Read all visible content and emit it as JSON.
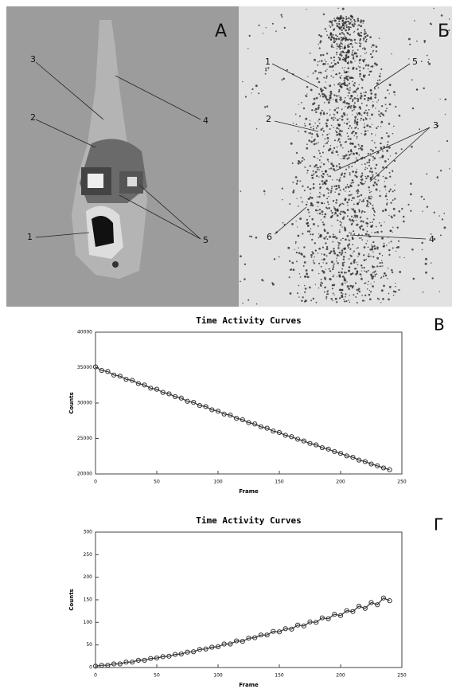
{
  "panels": [
    {
      "label": "А",
      "callouts": [
        "3",
        "2",
        "1",
        "4",
        "5"
      ]
    },
    {
      "label": "Б",
      "callouts": [
        "1",
        "2",
        "6",
        "5",
        "3",
        "4"
      ]
    }
  ],
  "chart_data": [
    {
      "type": "scatter",
      "panel_label": "В",
      "title": "Time Activity Curves",
      "x_label": "Frame",
      "y_label": "Counts",
      "color": "#333333",
      "x": [
        0,
        5,
        10,
        15,
        20,
        25,
        30,
        35,
        40,
        45,
        50,
        55,
        60,
        65,
        70,
        75,
        80,
        85,
        90,
        95,
        100,
        105,
        110,
        115,
        120,
        125,
        130,
        135,
        140,
        145,
        150,
        155,
        160,
        165,
        170,
        175,
        180,
        185,
        190,
        195,
        200,
        205,
        210,
        215,
        220,
        225,
        230,
        235,
        240
      ],
      "values": [
        35100,
        34600,
        34450,
        33950,
        33800,
        33350,
        33200,
        32750,
        32550,
        32100,
        31950,
        31500,
        31300,
        30900,
        30700,
        30250,
        30100,
        29650,
        29500,
        29050,
        28850,
        28450,
        28300,
        27850,
        27650,
        27250,
        27050,
        26650,
        26450,
        26050,
        25850,
        25450,
        25250,
        24900,
        24650,
        24300,
        24100,
        23700,
        23500,
        23150,
        22900,
        22550,
        22350,
        21950,
        21750,
        21400,
        21150,
        20850,
        20600
      ],
      "xlim": [
        0,
        250
      ],
      "xticks": [
        0,
        50,
        100,
        150,
        200,
        250
      ],
      "ylim": [
        20000,
        40000
      ],
      "yticks": [
        20000,
        25000,
        30000,
        35000,
        40000
      ]
    },
    {
      "type": "scatter",
      "panel_label": "Г",
      "title": "Time Activity Curves",
      "x_label": "Frame",
      "y_label": "Counts",
      "color": "#333333",
      "x": [
        0,
        5,
        10,
        15,
        20,
        25,
        30,
        35,
        40,
        45,
        50,
        55,
        60,
        65,
        70,
        75,
        80,
        85,
        90,
        95,
        100,
        105,
        110,
        115,
        120,
        125,
        130,
        135,
        140,
        145,
        150,
        155,
        160,
        165,
        170,
        175,
        180,
        185,
        190,
        195,
        200,
        205,
        210,
        215,
        220,
        225,
        230,
        235,
        240
      ],
      "values": [
        3,
        5,
        5,
        8,
        8,
        12,
        12,
        16,
        16,
        20,
        21,
        24,
        25,
        29,
        30,
        34,
        35,
        40,
        41,
        45,
        46,
        52,
        52,
        59,
        58,
        65,
        66,
        72,
        72,
        80,
        79,
        86,
        85,
        94,
        92,
        101,
        100,
        110,
        108,
        118,
        115,
        126,
        124,
        136,
        131,
        144,
        139,
        154,
        148
      ],
      "xlim": [
        0,
        250
      ],
      "xticks": [
        0,
        50,
        100,
        150,
        200,
        250
      ],
      "ylim": [
        0,
        300
      ],
      "yticks": [
        0,
        50,
        100,
        150,
        200,
        250,
        300
      ]
    }
  ]
}
